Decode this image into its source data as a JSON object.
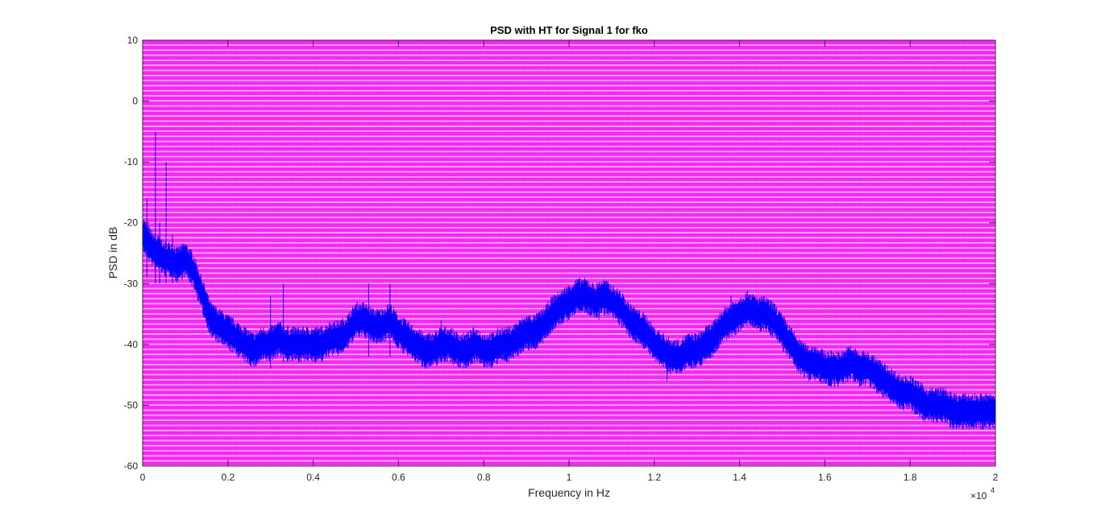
{
  "chart_data": {
    "type": "line",
    "title": "PSD with HT for Signal 1 for fko",
    "xlabel": "Frequency in Hz",
    "ylabel": "PSD in dB",
    "xlim": [
      0,
      20000
    ],
    "ylim": [
      -60,
      10
    ],
    "x_tick_labels": [
      "0",
      "0.2",
      "0.4",
      "0.6",
      "0.8",
      "1",
      "1.2",
      "1.4",
      "1.6",
      "1.8",
      "2"
    ],
    "x_tick_values": [
      0,
      2000,
      4000,
      6000,
      8000,
      10000,
      12000,
      14000,
      16000,
      18000,
      20000
    ],
    "x_exponent_base": "×10",
    "x_exponent_power": "4",
    "y_tick_labels": [
      "10",
      "0",
      "-10",
      "-20",
      "-30",
      "-40",
      "-50",
      "-60"
    ],
    "y_tick_values": [
      10,
      0,
      -10,
      -20,
      -30,
      -40,
      -50,
      -60
    ],
    "grid": false,
    "colors": {
      "series": "#0000ff",
      "background_fill": "#ff00ff",
      "axes": "#262626"
    },
    "series": [
      {
        "x": [
          0,
          100,
          200,
          300,
          400,
          500,
          600,
          700,
          800,
          1000,
          1200,
          1300,
          1400,
          1500,
          1600,
          1800,
          2000,
          2200,
          2400,
          2600,
          2800,
          3000,
          3200,
          3400,
          3600,
          3800,
          4000,
          4200,
          4400,
          4600,
          4800,
          5000,
          5200,
          5400,
          5600,
          5800,
          6000,
          6200,
          6400,
          6600,
          6800,
          7000,
          7200,
          7400,
          7600,
          7800,
          8000,
          8200,
          8400,
          8600,
          8800,
          9000,
          9200,
          9400,
          9600,
          9800,
          10000,
          10200,
          10400,
          10600,
          10800,
          11000,
          11200,
          11400,
          11600,
          11800,
          12000,
          12200,
          12400,
          12600,
          12800,
          13000,
          13200,
          13400,
          13600,
          13800,
          14000,
          14200,
          14400,
          14600,
          14800,
          15000,
          15200,
          15400,
          15600,
          15800,
          16000,
          16200,
          16400,
          16600,
          16800,
          17000,
          17200,
          17400,
          17600,
          17800,
          18000,
          18200,
          18400,
          18600,
          18800,
          19000,
          19200,
          19400,
          19600,
          19800,
          20000
        ],
        "y": [
          -22,
          -23,
          -24,
          -25,
          -25,
          -26,
          -26,
          -26,
          -27,
          -26,
          -28,
          -30,
          -32,
          -34,
          -36,
          -37,
          -38,
          -39,
          -40,
          -41,
          -40,
          -40,
          -39,
          -40,
          -40,
          -40,
          -40,
          -40,
          -39,
          -39,
          -38,
          -36,
          -36,
          -37,
          -37,
          -36,
          -38,
          -39,
          -40,
          -41,
          -41,
          -40,
          -40,
          -41,
          -41,
          -40,
          -41,
          -41,
          -40,
          -40,
          -39,
          -38,
          -38,
          -37,
          -35,
          -34,
          -33,
          -32,
          -32,
          -33,
          -32,
          -33,
          -34,
          -36,
          -37,
          -38,
          -40,
          -41,
          -42,
          -42,
          -41,
          -41,
          -40,
          -39,
          -37,
          -36,
          -35,
          -34,
          -35,
          -35,
          -36,
          -38,
          -40,
          -42,
          -43,
          -43,
          -44,
          -44,
          -44,
          -43,
          -44,
          -44,
          -45,
          -46,
          -47,
          -48,
          -48,
          -49,
          -50,
          -50,
          -50,
          -51,
          -51,
          -51,
          -51,
          -51,
          -51
        ],
        "spikes": [
          {
            "x": 100,
            "top": -16,
            "bottom": -29
          },
          {
            "x": 300,
            "top": -5,
            "bottom": -30
          },
          {
            "x": 400,
            "top": -20,
            "bottom": -30
          },
          {
            "x": 550,
            "top": -10,
            "bottom": -30
          },
          {
            "x": 700,
            "top": -22,
            "bottom": -30
          },
          {
            "x": 3000,
            "top": -32,
            "bottom": -44
          },
          {
            "x": 3300,
            "top": -30,
            "bottom": -43
          },
          {
            "x": 5300,
            "top": -30,
            "bottom": -42
          },
          {
            "x": 5800,
            "top": -30,
            "bottom": -42
          },
          {
            "x": 7000,
            "top": -36,
            "bottom": -43
          },
          {
            "x": 10000,
            "top": -32,
            "bottom": -36
          },
          {
            "x": 10700,
            "top": -30,
            "bottom": -36
          },
          {
            "x": 12300,
            "top": -40,
            "bottom": -46
          },
          {
            "x": 13800,
            "top": -32,
            "bottom": -38
          },
          {
            "x": 19700,
            "top": -49,
            "bottom": -54
          }
        ]
      }
    ]
  }
}
